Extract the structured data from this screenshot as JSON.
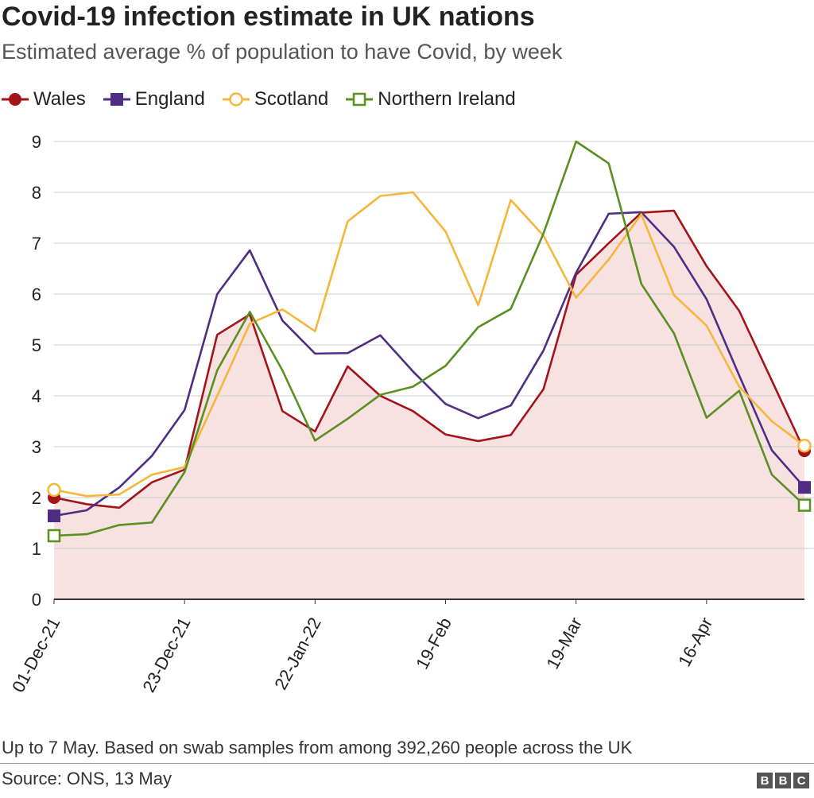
{
  "title": "Covid-19 infection estimate in UK nations",
  "subtitle": "Estimated average % of population to have Covid, by week",
  "footnote": "Up to 7 May. Based on swab samples from among 392,260 people across the UK",
  "source": "Source: ONS, 13 May",
  "logo": [
    "B",
    "B",
    "C"
  ],
  "colors": {
    "wales": "#a3141a",
    "england": "#4f2d84",
    "scotland": "#f5b73b",
    "northern_ireland": "#5a8f21",
    "area_fill": "#f8e1e1",
    "grid": "#cccccc"
  },
  "legend": [
    {
      "label": "Wales",
      "color": "#a3141a",
      "marker": "circle-filled"
    },
    {
      "label": "England",
      "color": "#4f2d84",
      "marker": "square-filled"
    },
    {
      "label": "Scotland",
      "color": "#f5b73b",
      "marker": "circle-open"
    },
    {
      "label": "Northern Ireland",
      "color": "#5a8f21",
      "marker": "square-open"
    }
  ],
  "chart_data": {
    "type": "line",
    "title": "Covid-19 infection estimate in UK nations",
    "subtitle": "Estimated average % of population to have Covid, by week",
    "xlabel": "",
    "ylabel": "",
    "ylim": [
      0,
      9
    ],
    "yticks": [
      0,
      1,
      2,
      3,
      4,
      5,
      6,
      7,
      8,
      9
    ],
    "grid": true,
    "legend_position": "top-left",
    "x_tick_labels": [
      {
        "index": 0,
        "label": "01-Dec-21"
      },
      {
        "index": 4,
        "label": "23-Dec-21"
      },
      {
        "index": 8,
        "label": "22-Jan-22"
      },
      {
        "index": 12,
        "label": "19-Feb"
      },
      {
        "index": 16,
        "label": "19-Mar"
      },
      {
        "index": 20,
        "label": "16-Apr"
      }
    ],
    "series": [
      {
        "name": "Wales",
        "color": "#a3141a",
        "marker": "circle-filled",
        "area": true,
        "values": [
          2.0,
          1.87,
          1.8,
          2.3,
          2.55,
          5.2,
          5.6,
          3.7,
          3.3,
          4.58,
          4.0,
          3.7,
          3.24,
          3.11,
          3.23,
          4.13,
          6.38,
          7.0,
          7.6,
          7.64,
          6.55,
          5.67,
          4.3,
          2.92
        ]
      },
      {
        "name": "England",
        "color": "#4f2d84",
        "marker": "square-filled",
        "values": [
          1.64,
          1.75,
          2.2,
          2.82,
          3.72,
          6.0,
          6.86,
          5.48,
          4.83,
          4.84,
          5.19,
          4.48,
          3.84,
          3.56,
          3.81,
          4.89,
          6.42,
          7.58,
          7.61,
          6.93,
          5.9,
          4.4,
          2.93,
          2.2
        ]
      },
      {
        "name": "Scotland",
        "color": "#f5b73b",
        "marker": "circle-open",
        "values": [
          2.15,
          2.03,
          2.06,
          2.45,
          2.6,
          4.0,
          5.42,
          5.7,
          5.27,
          7.43,
          7.93,
          8.0,
          7.23,
          5.78,
          7.85,
          7.15,
          5.93,
          6.68,
          7.57,
          5.98,
          5.38,
          4.18,
          3.5,
          3.02
        ]
      },
      {
        "name": "Northern Ireland",
        "color": "#5a8f21",
        "marker": "square-open",
        "values": [
          1.25,
          1.28,
          1.46,
          1.51,
          2.5,
          4.5,
          5.65,
          4.5,
          3.12,
          3.55,
          4.02,
          4.18,
          4.59,
          5.35,
          5.71,
          7.19,
          9.0,
          8.57,
          6.2,
          5.23,
          3.57,
          4.1,
          2.45,
          1.85
        ]
      }
    ]
  }
}
